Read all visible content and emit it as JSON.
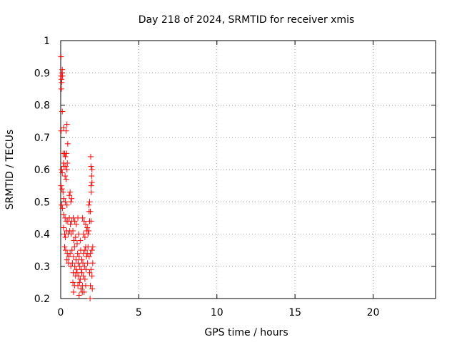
{
  "chart_data": {
    "type": "scatter",
    "title": "Day 218 of 2024, SRMTID for receiver xmis",
    "xlabel": "GPS time / hours",
    "ylabel": "SRMTID / TECUs",
    "xlim": [
      0,
      24
    ],
    "ylim": [
      0.2,
      1.0
    ],
    "xticks": [
      0,
      5,
      10,
      15,
      20
    ],
    "yticks": [
      0.2,
      0.3,
      0.4,
      0.5,
      0.6,
      0.7,
      0.8,
      0.9,
      1.0
    ],
    "ytick_labels": [
      "0.2",
      "0.3",
      "0.4",
      "0.5",
      "0.6",
      "0.7",
      "0.8",
      "0.9",
      "1"
    ],
    "grid": true,
    "marker": "+",
    "color": "#ff0000",
    "points": [
      [
        0.02,
        0.95
      ],
      [
        0.02,
        0.89
      ],
      [
        0.05,
        0.88
      ],
      [
        0.08,
        0.9
      ],
      [
        0.1,
        0.91
      ],
      [
        0.06,
        0.87
      ],
      [
        0.04,
        0.85
      ],
      [
        0.12,
        0.89
      ],
      [
        0.1,
        0.78
      ],
      [
        0.03,
        0.72
      ],
      [
        0.2,
        0.73
      ],
      [
        0.4,
        0.74
      ],
      [
        0.35,
        0.72
      ],
      [
        0.45,
        0.68
      ],
      [
        0.15,
        0.65
      ],
      [
        0.25,
        0.65
      ],
      [
        0.3,
        0.64
      ],
      [
        0.38,
        0.65
      ],
      [
        0.18,
        0.62
      ],
      [
        0.22,
        0.61
      ],
      [
        0.32,
        0.61
      ],
      [
        0.42,
        0.62
      ],
      [
        0.05,
        0.6
      ],
      [
        0.1,
        0.59
      ],
      [
        0.28,
        0.58
      ],
      [
        0.35,
        0.57
      ],
      [
        0.4,
        0.6
      ],
      [
        0.02,
        0.55
      ],
      [
        0.08,
        0.54
      ],
      [
        0.15,
        0.53
      ],
      [
        0.2,
        0.51
      ],
      [
        0.3,
        0.5
      ],
      [
        0.4,
        0.49
      ],
      [
        0.55,
        0.52
      ],
      [
        0.6,
        0.53
      ],
      [
        0.65,
        0.5
      ],
      [
        0.7,
        0.51
      ],
      [
        0.05,
        0.49
      ],
      [
        0.12,
        0.48
      ],
      [
        0.2,
        0.46
      ],
      [
        0.28,
        0.45
      ],
      [
        0.35,
        0.44
      ],
      [
        0.45,
        0.44
      ],
      [
        0.55,
        0.45
      ],
      [
        0.62,
        0.43
      ],
      [
        0.7,
        0.44
      ],
      [
        0.8,
        0.45
      ],
      [
        0.9,
        0.44
      ],
      [
        1.0,
        0.43
      ],
      [
        1.1,
        0.45
      ],
      [
        0.18,
        0.42
      ],
      [
        0.25,
        0.4
      ],
      [
        0.3,
        0.39
      ],
      [
        0.38,
        0.41
      ],
      [
        0.48,
        0.4
      ],
      [
        0.58,
        0.41
      ],
      [
        0.68,
        0.4
      ],
      [
        0.78,
        0.41
      ],
      [
        0.85,
        0.38
      ],
      [
        0.95,
        0.39
      ],
      [
        1.05,
        0.37
      ],
      [
        1.15,
        0.4
      ],
      [
        1.25,
        0.38
      ],
      [
        0.25,
        0.36
      ],
      [
        0.32,
        0.35
      ],
      [
        0.42,
        0.34
      ],
      [
        0.52,
        0.33
      ],
      [
        0.6,
        0.34
      ],
      [
        0.72,
        0.35
      ],
      [
        0.82,
        0.33
      ],
      [
        0.88,
        0.36
      ],
      [
        0.98,
        0.32
      ],
      [
        1.08,
        0.34
      ],
      [
        1.18,
        0.33
      ],
      [
        1.28,
        0.35
      ],
      [
        1.35,
        0.32
      ],
      [
        1.45,
        0.34
      ],
      [
        1.55,
        0.35
      ],
      [
        1.65,
        0.33
      ],
      [
        1.75,
        0.36
      ],
      [
        0.4,
        0.32
      ],
      [
        0.5,
        0.31
      ],
      [
        0.65,
        0.3
      ],
      [
        0.75,
        0.31
      ],
      [
        0.9,
        0.3
      ],
      [
        1.0,
        0.29
      ],
      [
        1.12,
        0.31
      ],
      [
        1.22,
        0.3
      ],
      [
        1.32,
        0.29
      ],
      [
        1.42,
        0.31
      ],
      [
        1.52,
        0.3
      ],
      [
        1.62,
        0.29
      ],
      [
        1.72,
        0.31
      ],
      [
        1.82,
        0.33
      ],
      [
        0.8,
        0.28
      ],
      [
        0.95,
        0.27
      ],
      [
        1.05,
        0.28
      ],
      [
        1.15,
        0.27
      ],
      [
        1.25,
        0.26
      ],
      [
        1.35,
        0.28
      ],
      [
        1.45,
        0.27
      ],
      [
        1.55,
        0.26
      ],
      [
        1.85,
        0.28
      ],
      [
        0.78,
        0.25
      ],
      [
        0.88,
        0.24
      ],
      [
        1.1,
        0.24
      ],
      [
        1.2,
        0.25
      ],
      [
        1.3,
        0.23
      ],
      [
        1.4,
        0.24
      ],
      [
        1.5,
        0.22
      ],
      [
        1.6,
        0.24
      ],
      [
        1.9,
        0.24
      ],
      [
        0.82,
        0.22
      ],
      [
        1.18,
        0.21
      ],
      [
        1.38,
        0.22
      ],
      [
        1.88,
        0.2
      ],
      [
        1.4,
        0.45
      ],
      [
        1.5,
        0.44
      ],
      [
        1.6,
        0.43
      ],
      [
        1.7,
        0.42
      ],
      [
        1.8,
        0.41
      ],
      [
        1.45,
        0.4
      ],
      [
        1.55,
        0.39
      ],
      [
        1.65,
        0.41
      ],
      [
        1.75,
        0.4
      ],
      [
        1.85,
        0.44
      ],
      [
        1.95,
        0.44
      ],
      [
        1.8,
        0.49
      ],
      [
        1.85,
        0.5
      ],
      [
        1.82,
        0.47
      ],
      [
        1.9,
        0.47
      ],
      [
        1.95,
        0.55
      ],
      [
        2.0,
        0.56
      ],
      [
        1.98,
        0.58
      ],
      [
        2.0,
        0.6
      ],
      [
        1.95,
        0.61
      ],
      [
        1.92,
        0.64
      ],
      [
        1.96,
        0.53
      ],
      [
        1.6,
        0.36
      ],
      [
        1.7,
        0.34
      ],
      [
        1.9,
        0.34
      ],
      [
        2.0,
        0.35
      ],
      [
        2.05,
        0.36
      ],
      [
        2.0,
        0.27
      ],
      [
        2.05,
        0.31
      ],
      [
        1.95,
        0.29
      ],
      [
        2.02,
        0.23
      ]
    ]
  }
}
